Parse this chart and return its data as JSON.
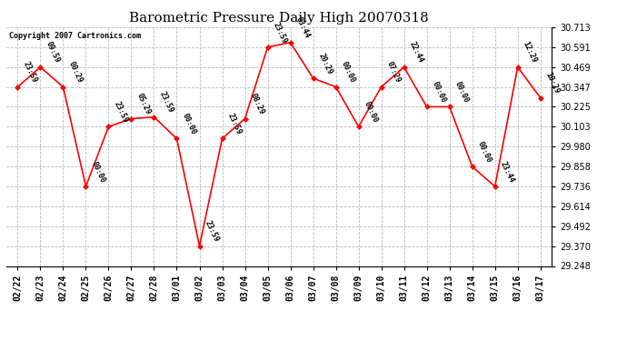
{
  "title": "Barometric Pressure Daily High 20070318",
  "copyright": "Copyright 2007 Cartronics.com",
  "dates": [
    "02/22",
    "02/23",
    "02/24",
    "02/25",
    "02/26",
    "02/27",
    "02/28",
    "03/01",
    "03/02",
    "03/03",
    "03/04",
    "03/05",
    "03/06",
    "03/07",
    "03/08",
    "03/09",
    "03/10",
    "03/11",
    "03/12",
    "03/13",
    "03/14",
    "03/15",
    "03/16",
    "03/17"
  ],
  "y_values": [
    30.347,
    30.469,
    30.347,
    29.736,
    30.103,
    30.152,
    30.162,
    30.03,
    29.37,
    30.03,
    30.152,
    30.591,
    30.62,
    30.4,
    30.347,
    30.103,
    30.347,
    30.469,
    30.225,
    30.225,
    29.858,
    29.736,
    30.469,
    30.28
  ],
  "pt_labels": [
    "23:59",
    "09:59",
    "00:29",
    "00:00",
    "23:59",
    "05:29",
    "23:59",
    "00:00",
    "23:59",
    "23:59",
    "08:29",
    "23:59",
    "03:44",
    "20:29",
    "00:00",
    "00:00",
    "07:29",
    "22:44",
    "00:00",
    "00:00",
    "00:00",
    "23:44",
    "12:29",
    "10:29"
  ],
  "ylim_min": 29.248,
  "ylim_max": 30.713,
  "yticks": [
    29.248,
    29.37,
    29.492,
    29.614,
    29.736,
    29.858,
    29.98,
    30.103,
    30.225,
    30.347,
    30.469,
    30.591,
    30.713
  ],
  "line_color": "red",
  "marker_color": "red",
  "grid_color": "#bbbbbb",
  "bg_color": "white",
  "title_fontsize": 11,
  "tick_fontsize": 7,
  "label_fontsize": 6,
  "fig_width": 6.9,
  "fig_height": 3.75,
  "dpi": 100
}
